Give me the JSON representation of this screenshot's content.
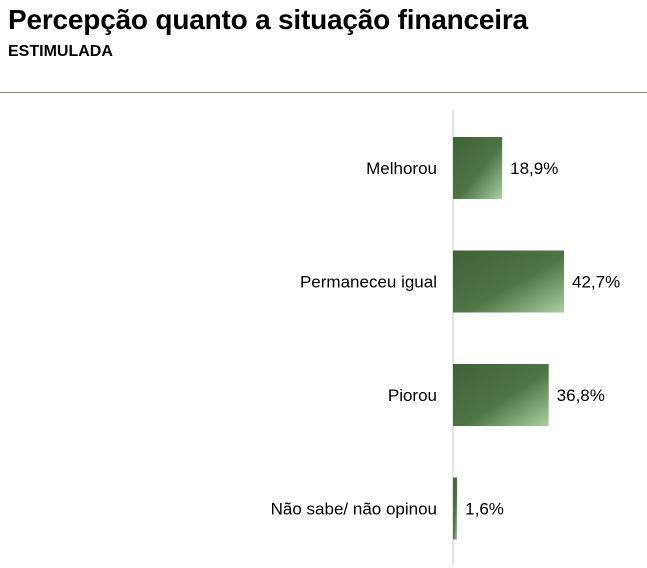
{
  "header": {
    "title": "Percepção quanto a situação financeira",
    "subtitle": "ESTIMULADA"
  },
  "chart_data": {
    "type": "bar",
    "orientation": "horizontal",
    "title": "Percepção quanto a situação financeira",
    "subtitle": "ESTIMULADA",
    "categories": [
      "Melhorou",
      "Permaneceu igual",
      "Piorou",
      "Não sabe/ não opinou"
    ],
    "values": [
      18.9,
      42.7,
      36.8,
      1.6
    ],
    "value_labels": [
      "18,9%",
      "42,7%",
      "36,8%",
      "1,6%"
    ],
    "unit": "%",
    "xlim": [
      0,
      100
    ],
    "grid": false,
    "legend": "none",
    "colors": {
      "bar_dark": "#3f6136",
      "bar_mid": "#4f7445",
      "bar_light": "#a9cfa3",
      "axis": "#c8c8c8",
      "rule": "#8a8a72"
    }
  }
}
